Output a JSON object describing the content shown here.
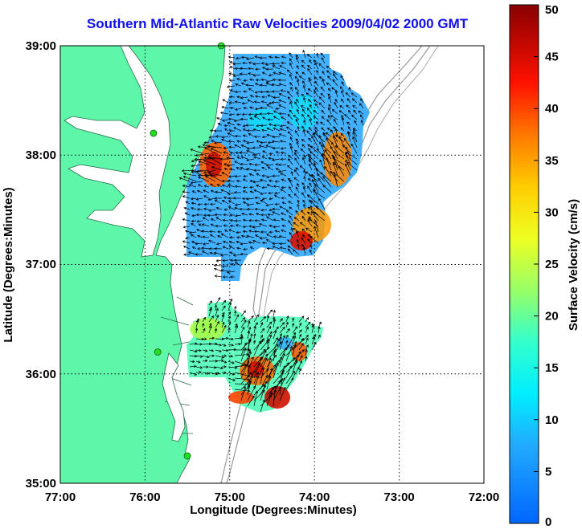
{
  "title": "Southern Mid-Atlantic Raw Velocities 2009/04/02 2000 GMT",
  "x_axis": {
    "label": "Longitude (Degrees:Minutes)",
    "ticks": [
      "77:00",
      "76:00",
      "75:00",
      "74:00",
      "73:00",
      "72:00"
    ]
  },
  "y_axis": {
    "label": "Latitude (Degrees:Minutes)",
    "ticks": [
      "39:00",
      "38:00",
      "37:00",
      "36:00",
      "35:00"
    ]
  },
  "colorbar": {
    "label": "Surface Velocity (cm/s)",
    "ticks": [
      "50",
      "45",
      "40",
      "35",
      "30",
      "25",
      "20",
      "15",
      "10",
      "5",
      "0"
    ],
    "min": 0,
    "max": 50,
    "colormap": "jet"
  },
  "colors": {
    "land": "#5ef6a9",
    "title": "#1010ee",
    "station": "#22dd22"
  },
  "extent": {
    "lon_min": -77.0,
    "lon_max": -72.0,
    "lat_min": 35.0,
    "lat_max": 39.0
  },
  "stations": [
    {
      "lon": -75.1,
      "lat": 39.0
    },
    {
      "lon": -75.9,
      "lat": 38.2
    },
    {
      "lon": -75.85,
      "lat": 36.2
    },
    {
      "lon": -75.5,
      "lat": 35.25
    }
  ]
}
